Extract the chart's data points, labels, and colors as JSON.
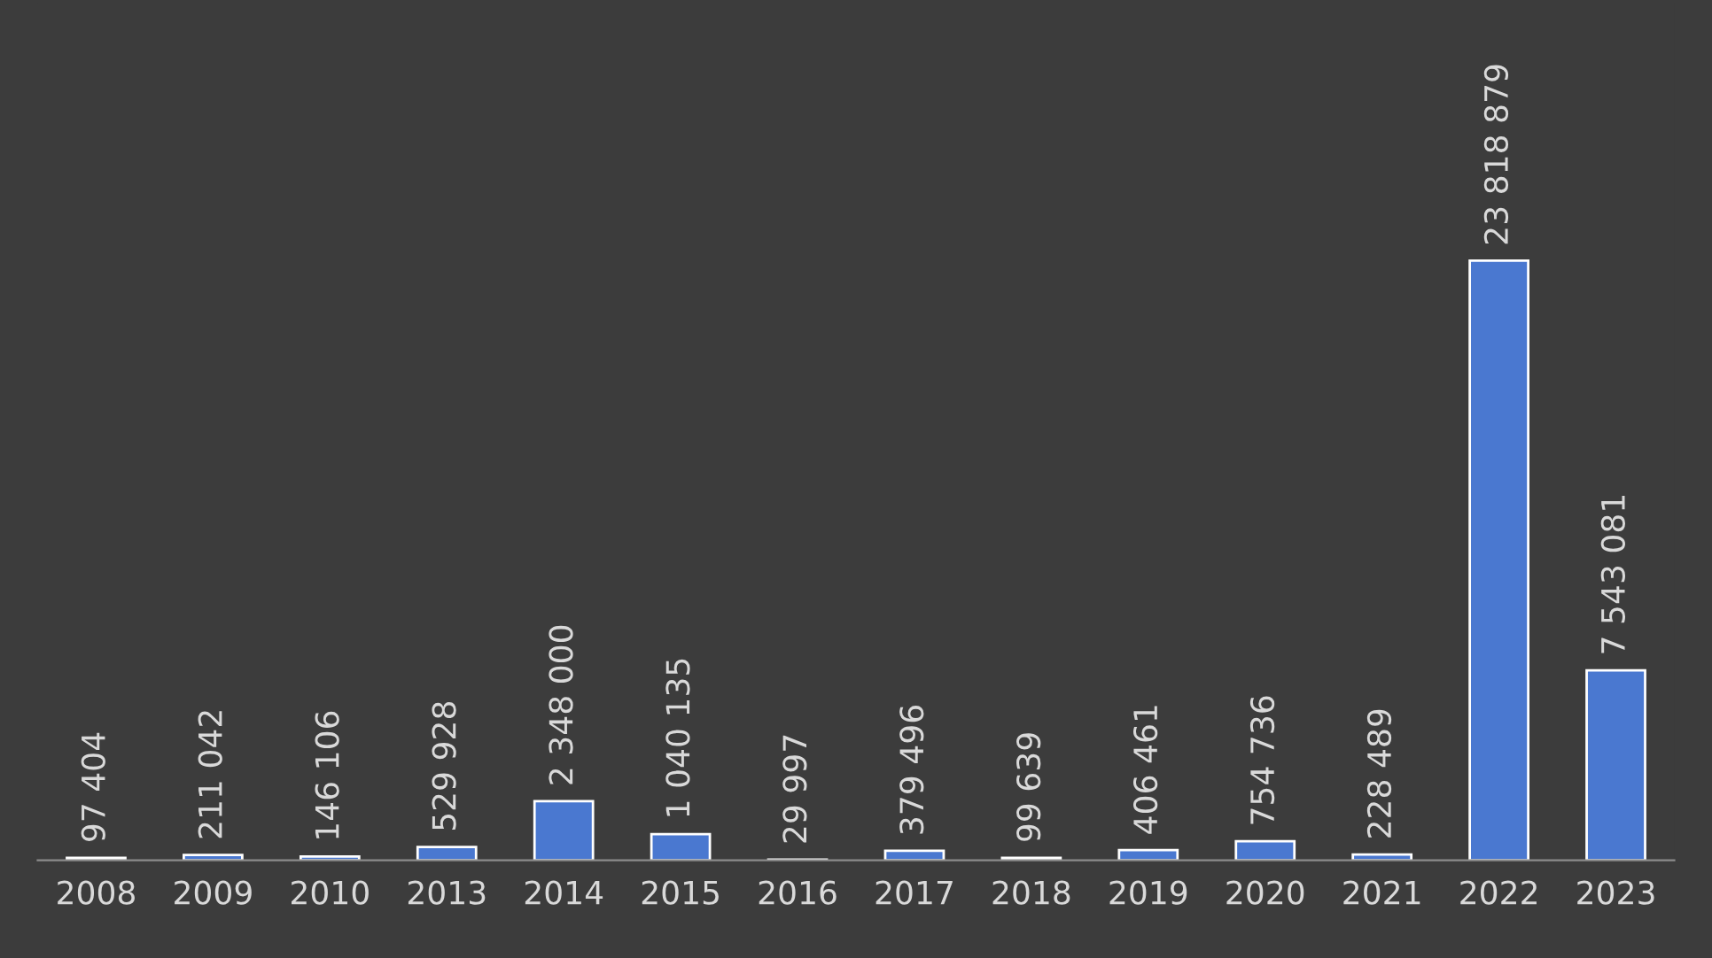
{
  "chart_data": {
    "type": "bar",
    "categories": [
      "2008",
      "2009",
      "2010",
      "2013",
      "2014",
      "2015",
      "2016",
      "2017",
      "2018",
      "2019",
      "2020",
      "2021",
      "2022",
      "2023"
    ],
    "values": [
      97404,
      211042,
      146106,
      529928,
      2348000,
      1040135,
      29997,
      379496,
      99639,
      406461,
      754736,
      228489,
      23818879,
      7543081
    ],
    "color": "#4a78d0",
    "data_labels": true,
    "grid": false,
    "legend": false
  }
}
